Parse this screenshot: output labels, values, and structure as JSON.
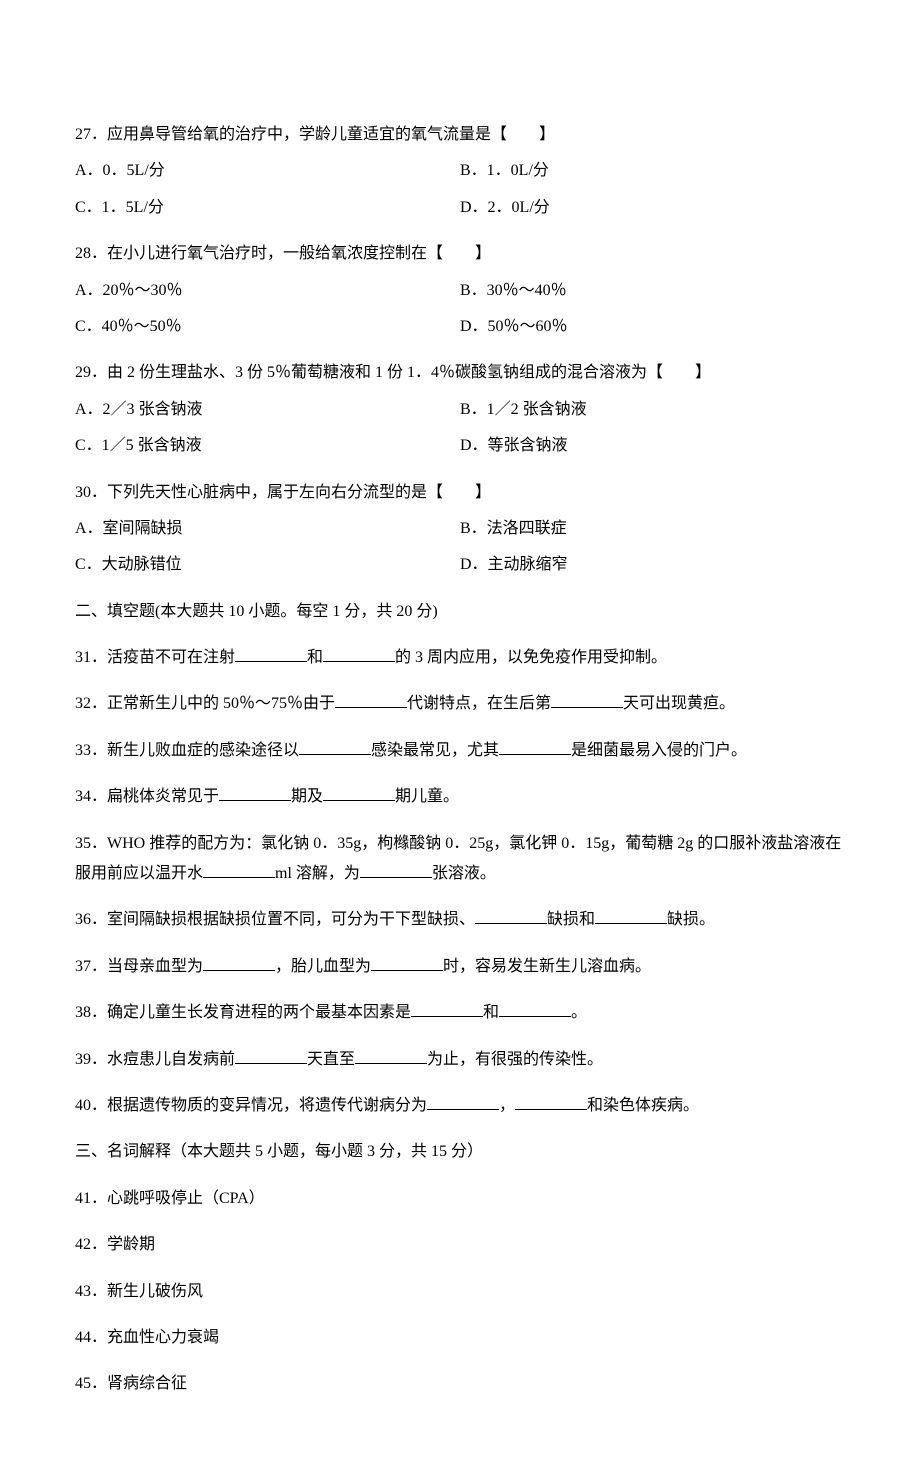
{
  "mcq": [
    {
      "num": "27",
      "text": "．应用鼻导管给氧的治疗中，学龄儿童适宜的氧气流量是【　　】",
      "rows": [
        {
          "a": "A．0．5L/分",
          "b": "B．1．0L/分"
        },
        {
          "a": "C．1．5L/分",
          "b": "D．2．0L/分"
        }
      ]
    },
    {
      "num": "28",
      "text": "．在小儿进行氧气治疗时，一般给氧浓度控制在【　　】",
      "rows": [
        {
          "a": "A．20％～30％",
          "b": "B．30％～40％"
        },
        {
          "a": "C．40％～50％",
          "b": "D．50％～60％"
        }
      ]
    },
    {
      "num": "29",
      "text": "．由 2 份生理盐水、3 份 5％葡萄糖液和 1 份 1．4％碳酸氢钠组成的混合溶液为【　　】",
      "rows": [
        {
          "a": "A．2／3 张含钠液",
          "b": "B．1／2 张含钠液"
        },
        {
          "a": "C．1／5 张含钠液",
          "b": "D．等张含钠液"
        }
      ]
    },
    {
      "num": "30",
      "text": "．下列先天性心脏病中，属于左向右分流型的是【　　】",
      "rows": [
        {
          "a": "A．室间隔缺损",
          "b": "B．法洛四联症"
        },
        {
          "a": "C．大动脉错位",
          "b": "D．主动脉缩窄"
        }
      ]
    }
  ],
  "section2": {
    "header": "二、填空题(本大题共 10 小题。每空 1 分，共 20 分)"
  },
  "fills": [
    {
      "num": "31",
      "parts": [
        "．活疫苗不可在注射",
        "和",
        "的 3 周内应用，以免免疫作用受抑制。"
      ]
    },
    {
      "num": "32",
      "parts": [
        "．正常新生儿中的 50％～75％由于",
        "代谢特点，在生后第",
        "天可出现黄疸。"
      ]
    },
    {
      "num": "33",
      "parts": [
        "．新生儿败血症的感染途径以",
        "感染最常见，尤其",
        "是细菌最易入侵的门户。"
      ]
    },
    {
      "num": "34",
      "parts": [
        "．扁桃体炎常见于",
        "期及",
        "期儿童。"
      ]
    },
    {
      "num": "35",
      "parts": [
        "．WHO 推荐的配方为：氯化钠 0．35g，枸橼酸钠 0．25g，氯化钾 0．15g，葡萄糖 2g 的口服补液盐溶液在服用前应以温开水",
        "ml 溶解，为",
        "张溶液。"
      ]
    },
    {
      "num": "36",
      "parts": [
        "．室间隔缺损根据缺损位置不同，可分为干下型缺损、",
        "缺损和",
        "缺损。"
      ]
    },
    {
      "num": "37",
      "parts": [
        "．当母亲血型为",
        "，胎儿血型为",
        "时，容易发生新生儿溶血病。"
      ]
    },
    {
      "num": "38",
      "parts": [
        "．确定儿童生长发育进程的两个最基本因素是",
        "和",
        "。"
      ]
    },
    {
      "num": "39",
      "parts": [
        "．水痘患儿自发病前",
        "天直至",
        "为止，有很强的传染性。"
      ]
    },
    {
      "num": "40",
      "parts": [
        "．根据遗传物质的变异情况，将遗传代谢病分为",
        "，",
        "和染色体疾病。"
      ]
    }
  ],
  "section3": {
    "header": "三、名词解释（本大题共 5 小题，每小题 3 分，共 15 分）"
  },
  "terms": [
    {
      "num": "41",
      "text": "．心跳呼吸停止（CPA）"
    },
    {
      "num": "42",
      "text": "．学龄期"
    },
    {
      "num": "43",
      "text": "．新生儿破伤风"
    },
    {
      "num": "44",
      "text": "．充血性心力衰竭"
    },
    {
      "num": "45",
      "text": "．肾病综合征"
    }
  ]
}
